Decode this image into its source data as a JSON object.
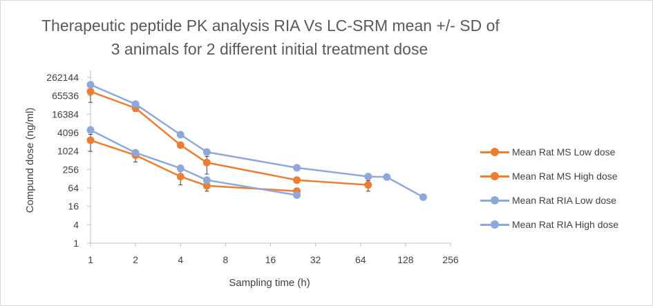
{
  "title": {
    "line1": "Therapeutic peptide PK analysis RIA Vs LC-SRM mean +/- SD of",
    "line2": "3 animals for 2 different initial treatment dose"
  },
  "chart_data": {
    "type": "line",
    "title": "Therapeutic peptide PK analysis RIA Vs LC-SRM mean +/- SD of 3 animals for 2 different initial treatment dose",
    "xlabel": "Sampling time (h)",
    "ylabel": "Compund dose (ng/ml)",
    "x_scale": "log2",
    "y_scale": "log4",
    "xlim": [
      1,
      256
    ],
    "ylim": [
      1,
      262144
    ],
    "x_ticks": [
      "1",
      "2",
      "4",
      "8",
      "16",
      "32",
      "64",
      "128",
      "256"
    ],
    "y_ticks": [
      "1",
      "4",
      "16",
      "64",
      "256",
      "1024",
      "4096",
      "16384",
      "65536",
      "262144"
    ],
    "grid": false,
    "legend_position": "right",
    "series": [
      {
        "name": "Mean Rat MS Low dose",
        "color": "#ed7d31",
        "points": [
          {
            "x": 1,
            "y": 2300,
            "err": 1300
          },
          {
            "x": 2,
            "y": 750,
            "err": 300
          },
          {
            "x": 4,
            "y": 150,
            "err": 70
          },
          {
            "x": 6,
            "y": 75,
            "err": 25
          },
          {
            "x": 24,
            "y": 50
          }
        ]
      },
      {
        "name": "Mean Rat MS High dose",
        "color": "#ed7d31",
        "points": [
          {
            "x": 1,
            "y": 90000,
            "err": 50000
          },
          {
            "x": 2,
            "y": 26000,
            "err": 6000
          },
          {
            "x": 4,
            "y": 1600
          },
          {
            "x": 6,
            "y": 430,
            "err": 250
          },
          {
            "x": 24,
            "y": 115
          },
          {
            "x": 72,
            "y": 80,
            "err": 30
          }
        ]
      },
      {
        "name": "Mean Rat RIA Low dose",
        "color": "#8fa8dc",
        "points": [
          {
            "x": 1,
            "y": 5000
          },
          {
            "x": 2,
            "y": 900
          },
          {
            "x": 4,
            "y": 280
          },
          {
            "x": 6,
            "y": 115
          },
          {
            "x": 24,
            "y": 37
          }
        ]
      },
      {
        "name": "Mean Rat RIA High dose",
        "color": "#8fa8dc",
        "points": [
          {
            "x": 1,
            "y": 150000
          },
          {
            "x": 2,
            "y": 35000
          },
          {
            "x": 4,
            "y": 3500
          },
          {
            "x": 6,
            "y": 950
          },
          {
            "x": 24,
            "y": 290
          },
          {
            "x": 72,
            "y": 150
          },
          {
            "x": 96,
            "y": 145
          },
          {
            "x": 168,
            "y": 32
          }
        ]
      }
    ]
  }
}
